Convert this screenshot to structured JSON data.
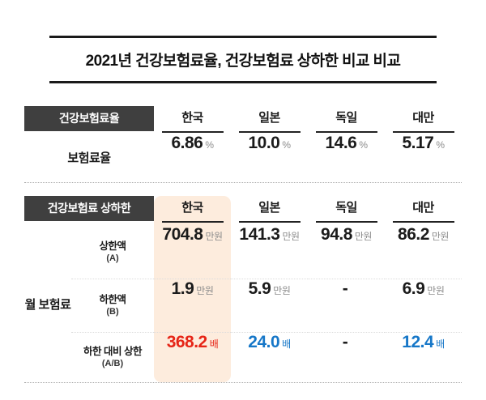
{
  "title": "2021년 건강보험료율, 건강보험료 상하한 비교 비교",
  "colors": {
    "red": "#e62517",
    "blue": "#1677c8",
    "highlight": "#fdecdd",
    "badge-bg": "#3f3f3f"
  },
  "rate_table": {
    "badge": "건강보험료율",
    "columns": [
      "한국",
      "일본",
      "독일",
      "대만"
    ],
    "row": {
      "label": "보험료율",
      "values": [
        {
          "num": "6.86",
          "unit": "%"
        },
        {
          "num": "10.0",
          "unit": "%"
        },
        {
          "num": "14.6",
          "unit": "%"
        },
        {
          "num": "5.17",
          "unit": "%"
        }
      ]
    }
  },
  "limit_table": {
    "badge": "건강보험료 상하한",
    "columns": [
      "한국",
      "일본",
      "독일",
      "대만"
    ],
    "group_label": "월 보험료",
    "rows": [
      {
        "label": "상한액",
        "sublabel": "(A)",
        "values": [
          {
            "num": "704.8",
            "unit": "만원",
            "color": "ink"
          },
          {
            "num": "141.3",
            "unit": "만원",
            "color": "ink"
          },
          {
            "num": "94.8",
            "unit": "만원",
            "color": "ink"
          },
          {
            "num": "86.2",
            "unit": "만원",
            "color": "ink"
          }
        ]
      },
      {
        "label": "하한액",
        "sublabel": "(B)",
        "values": [
          {
            "num": "1.9",
            "unit": "만원",
            "color": "ink"
          },
          {
            "num": "5.9",
            "unit": "만원",
            "color": "ink"
          },
          {
            "num": "-",
            "unit": "",
            "color": "ink"
          },
          {
            "num": "6.9",
            "unit": "만원",
            "color": "ink"
          }
        ]
      },
      {
        "label": "하한 대비 상한",
        "sublabel": "(A/B)",
        "values": [
          {
            "num": "368.2",
            "unit": "배",
            "color": "red"
          },
          {
            "num": "24.0",
            "unit": "배",
            "color": "blue"
          },
          {
            "num": "-",
            "unit": "",
            "color": "ink"
          },
          {
            "num": "12.4",
            "unit": "배",
            "color": "blue"
          }
        ]
      }
    ]
  },
  "chart_data": [
    {
      "type": "table",
      "title": "건강보험료율",
      "columns": [
        "한국",
        "일본",
        "독일",
        "대만"
      ],
      "rows": [
        {
          "label": "보험료율",
          "values": [
            "6.86%",
            "10.0%",
            "14.6%",
            "5.17%"
          ]
        }
      ]
    },
    {
      "type": "table",
      "title": "건강보험료 상하한 (월 보험료)",
      "columns": [
        "한국",
        "일본",
        "독일",
        "대만"
      ],
      "rows": [
        {
          "label": "상한액 (A)",
          "values": [
            "704.8만원",
            "141.3만원",
            "94.8만원",
            "86.2만원"
          ]
        },
        {
          "label": "하한액 (B)",
          "values": [
            "1.9만원",
            "5.9만원",
            "-",
            "6.9만원"
          ]
        },
        {
          "label": "하한 대비 상한 (A/B)",
          "values": [
            "368.2배",
            "24.0배",
            "-",
            "12.4배"
          ]
        }
      ]
    }
  ]
}
